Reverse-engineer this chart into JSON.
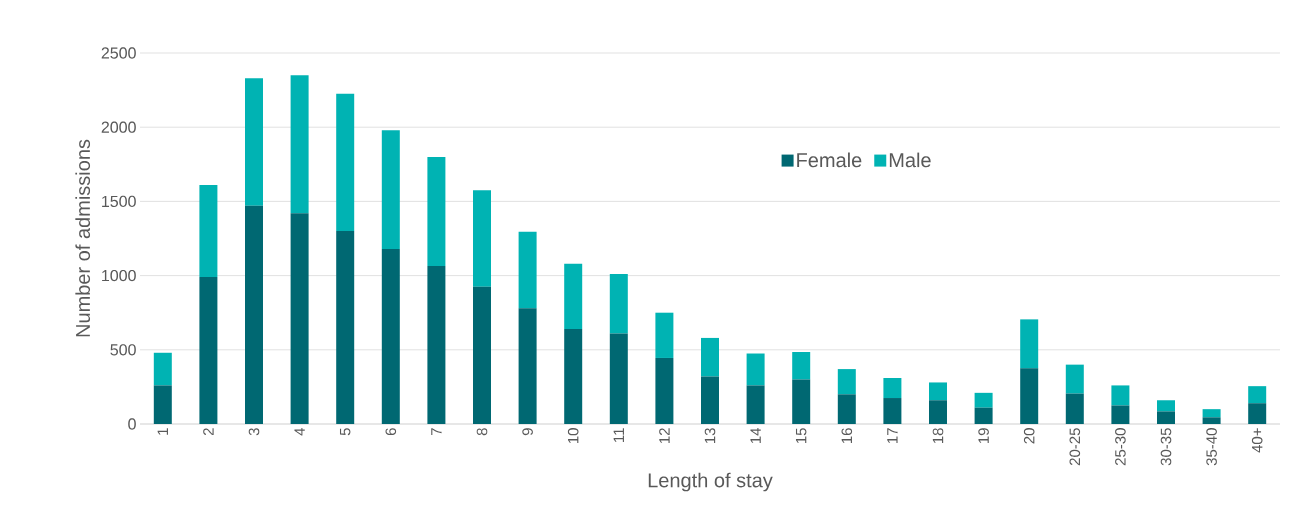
{
  "chart_data": {
    "type": "bar",
    "stacked": true,
    "xlabel": "Length of stay",
    "ylabel": "Number of admissions",
    "categories": [
      "1",
      "2",
      "3",
      "4",
      "5",
      "6",
      "7",
      "8",
      "9",
      "10",
      "11",
      "12",
      "13",
      "14",
      "15",
      "16",
      "17",
      "18",
      "19",
      "20",
      "20-25",
      "25-30",
      "30-35",
      "35-40",
      "40+"
    ],
    "series": [
      {
        "name": "Female",
        "color": "#006872",
        "values": [
          260,
          990,
          1470,
          1420,
          1300,
          1180,
          1065,
          925,
          780,
          640,
          610,
          445,
          320,
          260,
          300,
          200,
          175,
          160,
          110,
          375,
          205,
          125,
          85,
          45,
          140
        ]
      },
      {
        "name": "Male",
        "color": "#00b3b3",
        "values": [
          220,
          620,
          860,
          930,
          925,
          800,
          735,
          650,
          515,
          440,
          400,
          305,
          260,
          215,
          185,
          170,
          135,
          120,
          100,
          330,
          195,
          135,
          75,
          55,
          115
        ]
      }
    ],
    "ylim": [
      0,
      2500
    ],
    "yticks": [
      0,
      500,
      1000,
      1500,
      2000,
      2500
    ],
    "grid": "y",
    "legend": "top right"
  }
}
